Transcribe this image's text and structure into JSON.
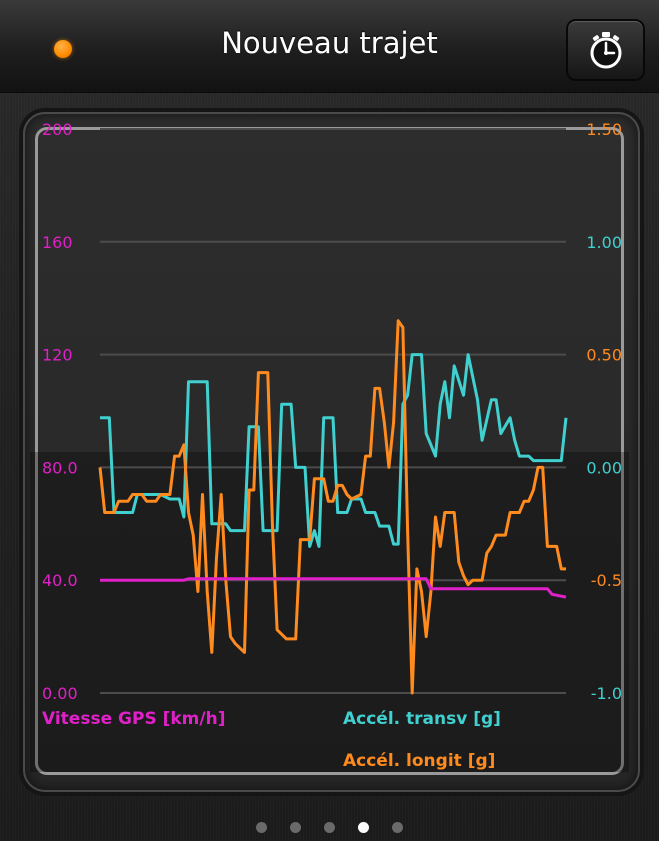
{
  "navbar": {
    "title": "Nouveau trajet",
    "status_color": "#ff8a00",
    "timer_icon": "stopwatch-icon"
  },
  "chart_data": {
    "type": "line",
    "left_axis": {
      "label": "Vitesse GPS [km/h]",
      "ticks": [
        "200",
        "160",
        "120",
        "80.0",
        "40.0",
        "0.00"
      ],
      "range": [
        0,
        200
      ],
      "color": "#e020c8"
    },
    "right_axis": {
      "ticks": [
        "1.50",
        "1.00",
        "0.50",
        "0.00",
        "-0.5",
        "-1.0"
      ],
      "range": [
        -1.0,
        1.5
      ],
      "tick_colors": [
        "#ff8a1e",
        "#40d0d0",
        "#ff8a1e",
        "#40d0d0",
        "#ff8a1e",
        "#40d0d0"
      ]
    },
    "grid": true,
    "series": [
      {
        "name": "Vitesse GPS [km/h]",
        "color": "#e020c8",
        "axis": "left",
        "points": [
          [
            0,
            40
          ],
          [
            0.18,
            40
          ],
          [
            0.19,
            40.5
          ],
          [
            0.7,
            40.5
          ],
          [
            0.71,
            37
          ],
          [
            0.96,
            37
          ],
          [
            0.97,
            35
          ],
          [
            1.0,
            34
          ]
        ]
      },
      {
        "name": "Accél. transv [g]",
        "color": "#40d0d0",
        "axis": "right",
        "points": [
          [
            0,
            0.22
          ],
          [
            0.02,
            0.22
          ],
          [
            0.03,
            -0.2
          ],
          [
            0.07,
            -0.2
          ],
          [
            0.08,
            -0.12
          ],
          [
            0.13,
            -0.12
          ],
          [
            0.15,
            -0.14
          ],
          [
            0.17,
            -0.14
          ],
          [
            0.18,
            -0.22
          ],
          [
            0.19,
            0.38
          ],
          [
            0.23,
            0.38
          ],
          [
            0.24,
            -0.25
          ],
          [
            0.27,
            -0.25
          ],
          [
            0.28,
            -0.28
          ],
          [
            0.31,
            -0.28
          ],
          [
            0.32,
            0.18
          ],
          [
            0.34,
            0.18
          ],
          [
            0.35,
            -0.28
          ],
          [
            0.38,
            -0.28
          ],
          [
            0.39,
            0.28
          ],
          [
            0.41,
            0.28
          ],
          [
            0.42,
            0.0
          ],
          [
            0.44,
            0.0
          ],
          [
            0.45,
            -0.35
          ],
          [
            0.46,
            -0.28
          ],
          [
            0.47,
            -0.35
          ],
          [
            0.48,
            0.22
          ],
          [
            0.5,
            0.22
          ],
          [
            0.51,
            -0.2
          ],
          [
            0.53,
            -0.2
          ],
          [
            0.54,
            -0.14
          ],
          [
            0.56,
            -0.14
          ],
          [
            0.57,
            -0.2
          ],
          [
            0.59,
            -0.2
          ],
          [
            0.6,
            -0.26
          ],
          [
            0.62,
            -0.26
          ],
          [
            0.63,
            -0.34
          ],
          [
            0.64,
            -0.34
          ],
          [
            0.65,
            0.28
          ],
          [
            0.66,
            0.32
          ],
          [
            0.67,
            0.5
          ],
          [
            0.69,
            0.5
          ],
          [
            0.7,
            0.15
          ],
          [
            0.71,
            0.1
          ],
          [
            0.72,
            0.05
          ],
          [
            0.73,
            0.28
          ],
          [
            0.74,
            0.38
          ],
          [
            0.75,
            0.22
          ],
          [
            0.76,
            0.45
          ],
          [
            0.78,
            0.32
          ],
          [
            0.79,
            0.5
          ],
          [
            0.81,
            0.3
          ],
          [
            0.82,
            0.12
          ],
          [
            0.84,
            0.3
          ],
          [
            0.85,
            0.3
          ],
          [
            0.86,
            0.15
          ],
          [
            0.88,
            0.22
          ],
          [
            0.89,
            0.12
          ],
          [
            0.9,
            0.05
          ],
          [
            0.92,
            0.05
          ],
          [
            0.93,
            0.03
          ],
          [
            0.99,
            0.03
          ],
          [
            1.0,
            0.22
          ]
        ]
      },
      {
        "name": "Accél. longit [g]",
        "color": "#ff8a1e",
        "axis": "right",
        "points": [
          [
            0,
            0.0
          ],
          [
            0.01,
            -0.2
          ],
          [
            0.03,
            -0.2
          ],
          [
            0.04,
            -0.15
          ],
          [
            0.06,
            -0.15
          ],
          [
            0.07,
            -0.12
          ],
          [
            0.09,
            -0.12
          ],
          [
            0.1,
            -0.15
          ],
          [
            0.12,
            -0.15
          ],
          [
            0.13,
            -0.12
          ],
          [
            0.15,
            -0.12
          ],
          [
            0.16,
            0.05
          ],
          [
            0.17,
            0.05
          ],
          [
            0.18,
            0.1
          ],
          [
            0.19,
            -0.2
          ],
          [
            0.2,
            -0.3
          ],
          [
            0.21,
            -0.55
          ],
          [
            0.22,
            -0.12
          ],
          [
            0.23,
            -0.55
          ],
          [
            0.24,
            -0.82
          ],
          [
            0.25,
            -0.4
          ],
          [
            0.26,
            -0.12
          ],
          [
            0.27,
            -0.5
          ],
          [
            0.28,
            -0.75
          ],
          [
            0.29,
            -0.78
          ],
          [
            0.31,
            -0.82
          ],
          [
            0.32,
            -0.1
          ],
          [
            0.33,
            -0.1
          ],
          [
            0.34,
            0.42
          ],
          [
            0.36,
            0.42
          ],
          [
            0.37,
            -0.25
          ],
          [
            0.38,
            -0.72
          ],
          [
            0.4,
            -0.76
          ],
          [
            0.42,
            -0.76
          ],
          [
            0.43,
            -0.32
          ],
          [
            0.45,
            -0.32
          ],
          [
            0.46,
            -0.05
          ],
          [
            0.48,
            -0.05
          ],
          [
            0.49,
            -0.15
          ],
          [
            0.5,
            -0.15
          ],
          [
            0.51,
            -0.08
          ],
          [
            0.52,
            -0.08
          ],
          [
            0.53,
            -0.12
          ],
          [
            0.54,
            -0.14
          ],
          [
            0.56,
            -0.12
          ],
          [
            0.57,
            0.05
          ],
          [
            0.58,
            0.05
          ],
          [
            0.59,
            0.35
          ],
          [
            0.6,
            0.35
          ],
          [
            0.61,
            0.2
          ],
          [
            0.62,
            0.0
          ],
          [
            0.63,
            0.2
          ],
          [
            0.64,
            0.65
          ],
          [
            0.65,
            0.62
          ],
          [
            0.66,
            -0.28
          ],
          [
            0.67,
            -1.0
          ],
          [
            0.68,
            -0.45
          ],
          [
            0.69,
            -0.55
          ],
          [
            0.7,
            -0.75
          ],
          [
            0.71,
            -0.55
          ],
          [
            0.72,
            -0.22
          ],
          [
            0.73,
            -0.35
          ],
          [
            0.74,
            -0.2
          ],
          [
            0.76,
            -0.2
          ],
          [
            0.77,
            -0.42
          ],
          [
            0.78,
            -0.48
          ],
          [
            0.79,
            -0.52
          ],
          [
            0.8,
            -0.5
          ],
          [
            0.82,
            -0.5
          ],
          [
            0.83,
            -0.38
          ],
          [
            0.84,
            -0.35
          ],
          [
            0.85,
            -0.3
          ],
          [
            0.87,
            -0.3
          ],
          [
            0.88,
            -0.2
          ],
          [
            0.9,
            -0.2
          ],
          [
            0.91,
            -0.15
          ],
          [
            0.92,
            -0.15
          ],
          [
            0.93,
            -0.1
          ],
          [
            0.94,
            0.0
          ],
          [
            0.95,
            0.0
          ],
          [
            0.96,
            -0.35
          ],
          [
            0.98,
            -0.35
          ],
          [
            0.99,
            -0.45
          ],
          [
            1.0,
            -0.45
          ]
        ]
      }
    ],
    "legend": [
      {
        "label": "Vitesse GPS [km/h]",
        "color": "#e020c8"
      },
      {
        "label": "Accél. transv [g]",
        "color": "#40d0d0"
      },
      {
        "label": "Accél. longit [g]",
        "color": "#ff8a1e"
      }
    ]
  },
  "pagination": {
    "count": 5,
    "active_index": 3
  }
}
